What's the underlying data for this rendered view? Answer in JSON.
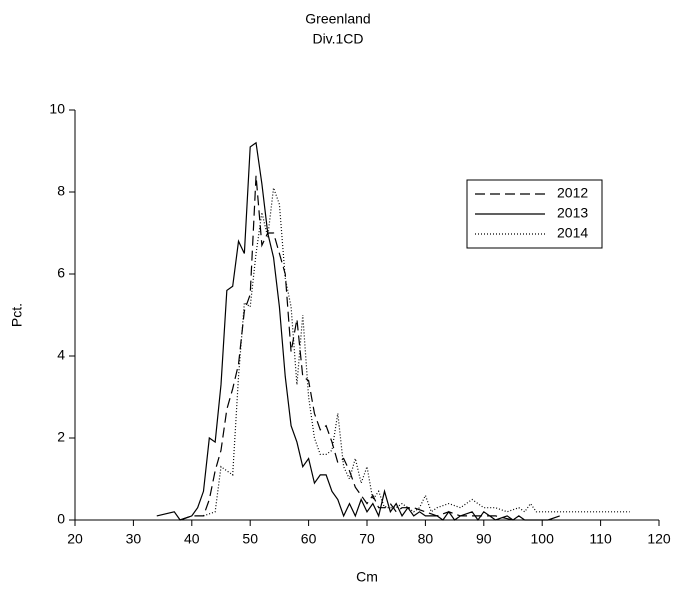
{
  "chart_data": {
    "type": "line",
    "title": "Greenland",
    "subtitle": "Div.1CD",
    "x_label": "Cm",
    "y_label": "Pct.",
    "xlim": [
      20,
      120
    ],
    "xticks": [
      20,
      30,
      40,
      50,
      60,
      70,
      80,
      90,
      100,
      110,
      120
    ],
    "ylim": [
      0,
      10
    ],
    "yticks": [
      0,
      2,
      4,
      6,
      8,
      10
    ],
    "legend": "upper right",
    "series": [
      {
        "name": "2012",
        "color": "#000000",
        "line_style": "dashed",
        "x": [
          38,
          40,
          42,
          43,
          44,
          45,
          46,
          47,
          48,
          49,
          50,
          51,
          52,
          53,
          54,
          55,
          56,
          57,
          58,
          59,
          60,
          61,
          62,
          63,
          64,
          65,
          66,
          67,
          68,
          69,
          70,
          71,
          72,
          73,
          74,
          75,
          76,
          78,
          80,
          82,
          84,
          86,
          88,
          90,
          92,
          95
        ],
        "values": [
          0.0,
          0.1,
          0.1,
          0.5,
          1.2,
          1.7,
          2.7,
          3.2,
          3.8,
          5.1,
          5.5,
          8.4,
          6.7,
          7.0,
          7.0,
          6.5,
          6.0,
          4.1,
          4.9,
          3.5,
          3.4,
          2.6,
          2.2,
          2.3,
          1.9,
          1.4,
          1.5,
          1.2,
          0.8,
          0.6,
          0.4,
          0.6,
          0.3,
          0.3,
          0.4,
          0.2,
          0.3,
          0.3,
          0.2,
          0.1,
          0.2,
          0.1,
          0.1,
          0.1,
          0.1,
          0.0
        ]
      },
      {
        "name": "2013",
        "color": "#000000",
        "line_style": "solid",
        "x": [
          34,
          37,
          38,
          40,
          41,
          42,
          43,
          44,
          45,
          46,
          47,
          48,
          49,
          50,
          51,
          52,
          53,
          54,
          55,
          56,
          57,
          58,
          59,
          60,
          61,
          62,
          63,
          64,
          65,
          66,
          67,
          68,
          69,
          70,
          71,
          72,
          73,
          74,
          75,
          76,
          77,
          78,
          79,
          80,
          82,
          83,
          84,
          85,
          86,
          88,
          89,
          90,
          91,
          92,
          94,
          95,
          96,
          97,
          101,
          103
        ],
        "values": [
          0.1,
          0.2,
          0.0,
          0.1,
          0.3,
          0.7,
          2.0,
          1.9,
          3.3,
          5.6,
          5.7,
          6.8,
          6.5,
          9.1,
          9.2,
          8.2,
          7.0,
          6.4,
          5.2,
          3.5,
          2.3,
          1.9,
          1.3,
          1.5,
          0.9,
          1.1,
          1.1,
          0.7,
          0.5,
          0.1,
          0.4,
          0.1,
          0.5,
          0.2,
          0.4,
          0.1,
          0.7,
          0.2,
          0.4,
          0.1,
          0.3,
          0.1,
          0.2,
          0.1,
          0.1,
          0.0,
          0.2,
          0.0,
          0.1,
          0.2,
          0.0,
          0.2,
          0.1,
          0.0,
          0.1,
          0.0,
          0.1,
          0.0,
          0.0,
          0.1
        ]
      },
      {
        "name": "2014",
        "color": "#000000",
        "line_style": "dotted",
        "x": [
          42,
          44,
          45,
          46,
          47,
          48,
          49,
          50,
          51,
          52,
          53,
          54,
          55,
          56,
          57,
          58,
          59,
          60,
          61,
          62,
          63,
          64,
          65,
          66,
          67,
          68,
          69,
          70,
          71,
          72,
          73,
          74,
          75,
          76,
          78,
          79,
          80,
          81,
          82,
          84,
          86,
          88,
          90,
          92,
          94,
          96,
          97,
          98,
          99,
          115
        ],
        "values": [
          0.1,
          0.2,
          1.3,
          1.2,
          1.1,
          3.5,
          5.3,
          5.2,
          6.5,
          7.5,
          6.9,
          8.1,
          7.7,
          5.9,
          5.2,
          3.3,
          5.0,
          3.0,
          2.0,
          1.6,
          1.6,
          1.7,
          2.6,
          1.3,
          1.0,
          1.5,
          0.9,
          1.3,
          0.5,
          0.7,
          0.3,
          0.3,
          0.3,
          0.4,
          0.2,
          0.3,
          0.6,
          0.2,
          0.3,
          0.4,
          0.3,
          0.5,
          0.3,
          0.3,
          0.2,
          0.3,
          0.2,
          0.4,
          0.2,
          0.2
        ]
      }
    ]
  }
}
